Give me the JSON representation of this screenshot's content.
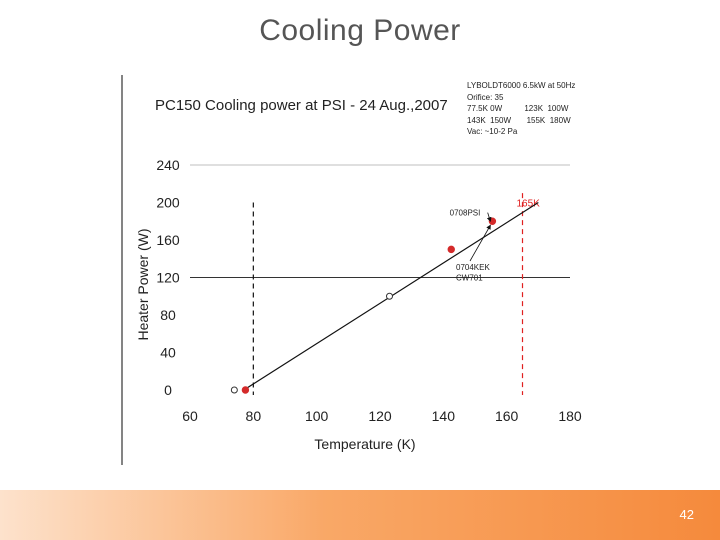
{
  "slide": {
    "title": "Cooling Power",
    "page_number": "42"
  },
  "chart_data": {
    "type": "scatter",
    "title": "PC150 Cooling power at PSI - 24 Aug.,2007",
    "xlabel": "Temperature (K)",
    "ylabel": "Heater Power (W)",
    "xlim": [
      60,
      180
    ],
    "ylim": [
      0,
      240
    ],
    "x_ticks": [
      "60",
      "80",
      "100",
      "120",
      "140",
      "160",
      "180"
    ],
    "y_ticks": [
      "0",
      "40",
      "80",
      "120",
      "160",
      "200",
      "240"
    ],
    "grid": "horizontal at 120 and 240",
    "series": [
      {
        "marker": "filled-red",
        "x": [
          77.5,
          142.5,
          155.5
        ],
        "y": [
          0,
          150,
          180
        ]
      },
      {
        "marker": "open-circle",
        "x": [
          74,
          123
        ],
        "y": [
          0,
          100
        ]
      }
    ],
    "fit_line": {
      "x": [
        77,
        170
      ],
      "y": [
        0,
        200
      ]
    },
    "reference_lines": [
      {
        "axis": "x",
        "value": 80,
        "style": "dashed",
        "color": "#111111"
      },
      {
        "axis": "x",
        "value": 165,
        "style": "dashed",
        "color": "#e02020",
        "label": "165K"
      }
    ],
    "annotations": [
      {
        "text": "0708PSI",
        "x": 142,
        "y": 186,
        "arrow_to": [
          155.5,
          180
        ]
      },
      {
        "text": "0704KEK",
        "x": 144,
        "y": 128,
        "arrow_to": [
          155.5,
          180
        ]
      },
      {
        "text": "CW701",
        "x": 144,
        "y": 117
      }
    ],
    "info_box": [
      "LYBOLDT6000 6.5kW at 50Hz",
      "Orifice: 35",
      "77.5K 0W          123K  100W",
      "143K  150W       155K  180W",
      "Vac: ~10-2 Pa"
    ]
  },
  "colors": {
    "accent_red": "#d42a2a",
    "ref_line_red": "#e02020",
    "footer_orange": "#f58a3c"
  }
}
